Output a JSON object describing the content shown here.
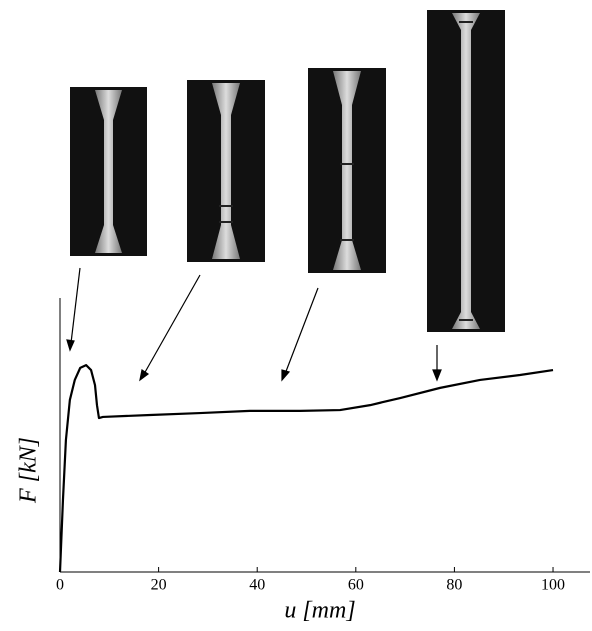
{
  "chart_data": {
    "type": "line",
    "x_label": "u [mm]",
    "y_label": "F [kN]",
    "x": [
      0,
      0.6,
      1.2,
      2.0,
      3.0,
      4.1,
      5.3,
      6.3,
      7.1,
      7.5,
      7.9,
      8.7,
      18.3,
      28.4,
      38.5,
      48.7,
      56.8,
      62.9,
      69.0,
      77.1,
      85.2,
      93.3,
      100
    ],
    "values": [
      0,
      26.3,
      48.2,
      62.8,
      70.1,
      74.5,
      75.5,
      73.7,
      68.2,
      60.9,
      56.2,
      56.6,
      57.3,
      58.0,
      58.8,
      58.8,
      59.1,
      60.9,
      63.5,
      67.2,
      70.1,
      71.9,
      73.7
    ],
    "color": "#000000",
    "xlim": [
      0,
      107.5
    ],
    "xticks": [
      0,
      20,
      40,
      60,
      80,
      100
    ],
    "ylim": [
      0,
      100
    ]
  }
}
